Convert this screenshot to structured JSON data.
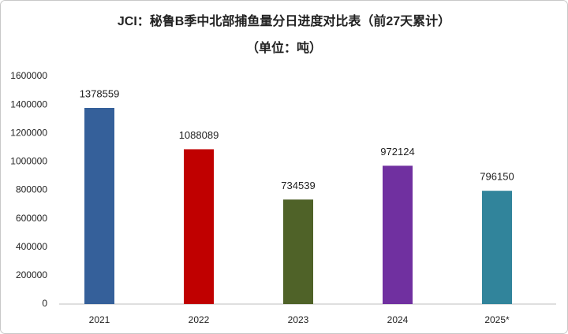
{
  "chart_data": {
    "type": "bar",
    "title": "JCI：秘鲁B季中北部捕鱼量分日进度对比表（前27天累计）",
    "subtitle": "（单位：吨）",
    "categories": [
      "2021",
      "2022",
      "2023",
      "2024",
      "2025*"
    ],
    "values": [
      1378559,
      1088089,
      734539,
      972124,
      796150
    ],
    "colors": [
      "#35609a",
      "#c00000",
      "#4f6228",
      "#7030a0",
      "#31849b"
    ],
    "ylim": [
      0,
      1600000
    ],
    "yticks": [
      0,
      200000,
      400000,
      600000,
      800000,
      1000000,
      1200000,
      1400000,
      1600000
    ],
    "grid": false
  }
}
